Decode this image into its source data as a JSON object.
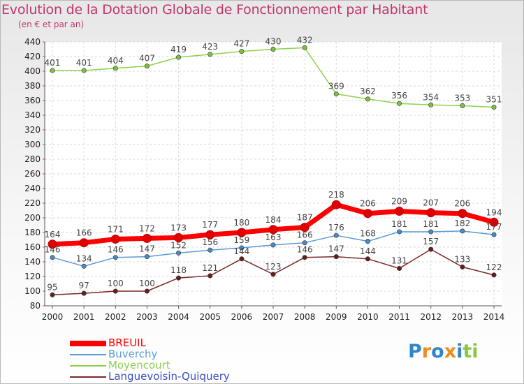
{
  "header": {
    "title": "Evolution de la Dotation Globale de Fonctionnement par Habitant",
    "subtitle": "(en € et par an)"
  },
  "logo": {
    "text": "Proxiti"
  },
  "chart_data": {
    "type": "line",
    "title": "Evolution de la Dotation Globale de Fonctionnement par Habitant",
    "subtitle": "(en € et par an)",
    "xlabel": "",
    "ylabel": "",
    "x": [
      "2000",
      "2001",
      "2002",
      "2003",
      "2004",
      "2005",
      "2006",
      "2007",
      "2008",
      "2009",
      "2010",
      "2011",
      "2012",
      "2013",
      "2014"
    ],
    "ylim": [
      80,
      440
    ],
    "yticks": [
      80,
      100,
      120,
      140,
      160,
      180,
      200,
      220,
      240,
      260,
      280,
      300,
      320,
      340,
      360,
      380,
      400,
      420,
      440
    ],
    "grid": true,
    "legend_position": "bottom-left",
    "series": [
      {
        "name": "BREUIL",
        "color": "#ff0000",
        "marker_color": "#e00000",
        "values": [
          164,
          166,
          171,
          172,
          173,
          177,
          180,
          184,
          187,
          218,
          206,
          209,
          207,
          206,
          194
        ]
      },
      {
        "name": "Buverchy",
        "color": "#5b9bd5",
        "marker_color": "#4a8ac4",
        "values": [
          146,
          134,
          146,
          147,
          152,
          156,
          159,
          163,
          166,
          176,
          168,
          181,
          181,
          182,
          177
        ]
      },
      {
        "name": "Moyencourt",
        "color": "#8fd14f",
        "marker_color": "#7cc23d",
        "values": [
          401,
          401,
          404,
          407,
          419,
          423,
          427,
          430,
          432,
          369,
          362,
          356,
          354,
          353,
          351
        ]
      },
      {
        "name": "Languevoisin-Quiquery",
        "color": "#7a2828",
        "marker_color": "#6a1c1c",
        "values": [
          95,
          97,
          100,
          100,
          118,
          121,
          144,
          123,
          146,
          147,
          144,
          131,
          157,
          133,
          122
        ]
      }
    ]
  }
}
